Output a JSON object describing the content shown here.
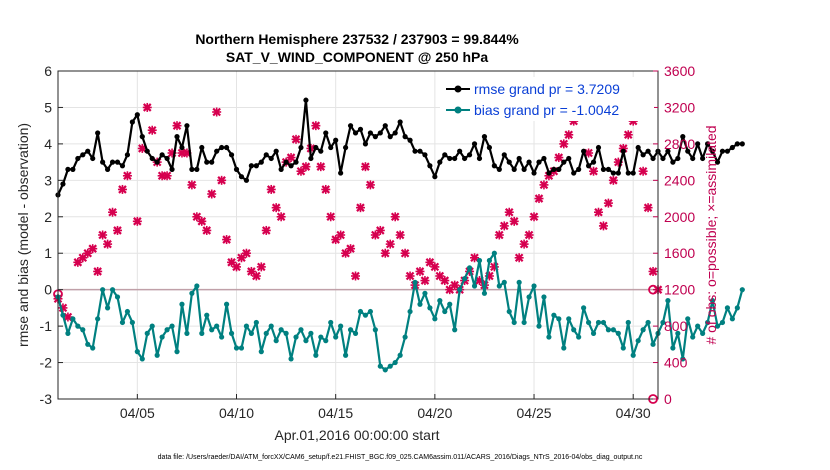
{
  "chart_data": {
    "type": "line",
    "title": "Northern Hemisphere 237532 / 237903 = 99.844%",
    "subtitle": "SAT_V_WIND_COMPONENT @ 250 hPa",
    "xlabel": "Apr.01,2016 00:00:00 start",
    "ylabel": "rmse and bias (model - observation)",
    "ylabel_right": "# of obs: o=possible; ×=assimilated",
    "footer": "data file: /Users/raeder/DAI/ATM_forcXX/CAM6_setup/f.e21.FHIST_BGC.f09_025.CAM6assim.011/ACARS_2016/Diags_NTrS_2016-04/obs_diag_output.nc",
    "x_range": [
      1.0,
      31.25
    ],
    "ylim": [
      -3,
      6
    ],
    "ylim_right": [
      0,
      3600
    ],
    "x_ticks": [
      {
        "value": 5,
        "label": "04/05"
      },
      {
        "value": 10,
        "label": "04/10"
      },
      {
        "value": 15,
        "label": "04/15"
      },
      {
        "value": 20,
        "label": "04/20"
      },
      {
        "value": 25,
        "label": "04/25"
      },
      {
        "value": 30,
        "label": "04/30"
      }
    ],
    "y_ticks": [
      "-3",
      "-2",
      "-1",
      "0",
      "1",
      "2",
      "3",
      "4",
      "5",
      "6"
    ],
    "y_ticks_right": [
      "0",
      "400",
      "800",
      "1200",
      "1600",
      "2000",
      "2400",
      "2800",
      "3200",
      "3600"
    ],
    "grid": true,
    "legend_position": "top-right",
    "colors": {
      "rmse": "#000000",
      "bias": "#008080",
      "obs": "#d6004f",
      "zero_line": "#c0a0a8"
    },
    "series": [
      {
        "name": "rmse grand pr = 3.7209",
        "axis": "left",
        "x_start": 1.0,
        "x_step": 0.25,
        "values": [
          2.6,
          2.9,
          3.3,
          3.3,
          3.6,
          3.7,
          3.8,
          3.6,
          4.3,
          3.5,
          3.3,
          3.5,
          3.5,
          3.4,
          3.7,
          4.6,
          4.8,
          4.2,
          3.8,
          3.6,
          3.5,
          3.7,
          3.6,
          3.3,
          4.2,
          3.9,
          4.5,
          3.3,
          3.3,
          3.9,
          3.5,
          3.5,
          3.8,
          3.9,
          3.9,
          3.7,
          3.3,
          3.1,
          3.0,
          3.4,
          3.4,
          3.5,
          3.7,
          3.6,
          3.8,
          3.3,
          3.5,
          3.4,
          3.5,
          3.9,
          5.2,
          3.6,
          3.9,
          3.8,
          4.3,
          3.9,
          4.1,
          3.2,
          3.9,
          4.5,
          4.3,
          4.4,
          4.0,
          4.3,
          4.2,
          4.3,
          4.5,
          4.2,
          4.3,
          4.6,
          4.2,
          4.1,
          3.8,
          3.8,
          3.7,
          3.4,
          3.1,
          3.5,
          3.7,
          3.6,
          3.6,
          3.8,
          3.6,
          3.7,
          4.0,
          3.6,
          4.2,
          3.9,
          3.4,
          3.3,
          3.7,
          3.5,
          3.3,
          3.6,
          3.3,
          3.5,
          3.2,
          3.5,
          3.6,
          3.2,
          3.3,
          3.3,
          3.5,
          3.6,
          3.2,
          3.3,
          3.8,
          3.4,
          3.5,
          3.9,
          3.3,
          3.3,
          3.2,
          3.2,
          3.8,
          3.2,
          3.2,
          3.9,
          3.7,
          3.8,
          3.6,
          3.8,
          3.6,
          3.8,
          3.5,
          3.6,
          4.2,
          3.8,
          3.6,
          4.0,
          3.6,
          4.0,
          3.8,
          3.5,
          3.8,
          3.8,
          3.9,
          4.0,
          4.0
        ]
      },
      {
        "name": "bias grand pr = -1.0042",
        "axis": "left",
        "x_start": 1.0,
        "x_step": 0.25,
        "values": [
          -0.2,
          -0.7,
          -1.2,
          -0.8,
          -1.0,
          -1.1,
          -1.5,
          -1.6,
          -0.8,
          0.0,
          -0.5,
          0.0,
          -0.2,
          -0.9,
          -0.6,
          -0.9,
          -1.7,
          -1.9,
          -1.2,
          -1.0,
          -1.8,
          -1.3,
          -1.1,
          -1.0,
          -1.7,
          -0.4,
          -1.2,
          -0.1,
          0.1,
          -1.2,
          -0.7,
          -1.1,
          -1.0,
          -1.3,
          -0.4,
          -1.2,
          -1.6,
          -1.6,
          -1.0,
          -1.2,
          -0.9,
          -1.7,
          -1.2,
          -1.0,
          -1.4,
          -1.1,
          -1.2,
          -1.9,
          -1.3,
          -1.1,
          -1.4,
          -1.2,
          -1.8,
          -1.3,
          -1.4,
          -0.9,
          -1.3,
          -1.0,
          -1.8,
          -1.1,
          -1.2,
          -0.6,
          -0.7,
          -0.6,
          -1.1,
          -2.1,
          -2.2,
          -2.1,
          -2.0,
          -1.8,
          -1.3,
          -0.6,
          0.2,
          -0.4,
          -0.1,
          -0.5,
          -0.8,
          -0.3,
          -0.6,
          -0.4,
          -1.1,
          0.0,
          0.3,
          0.6,
          0.1,
          0.8,
          -0.1,
          0.8,
          1.0,
          0.1,
          0.2,
          -0.6,
          -0.9,
          0.2,
          -0.9,
          -0.2,
          0.1,
          -1.0,
          -0.2,
          -1.3,
          -0.7,
          -0.8,
          -1.6,
          -0.8,
          -1.1,
          -1.3,
          -0.5,
          -0.9,
          -1.2,
          -0.9,
          -0.9,
          -1.1,
          -1.1,
          -1.2,
          -1.6,
          -0.9,
          -1.8,
          -1.4,
          -1.1,
          -0.9,
          -1.5,
          -1.2,
          -0.9,
          -0.3,
          -1.6,
          -1.2,
          -1.9,
          -0.8,
          -1.3,
          -1.0,
          -1.2,
          -0.9,
          -0.3,
          -1.0,
          -0.9,
          -0.5,
          -0.8,
          -0.5,
          0.0
        ]
      },
      {
        "name": "assimilated",
        "axis": "right",
        "points": [
          [
            1.0,
            1100
          ],
          [
            1.25,
            1000
          ],
          [
            1.5,
            900
          ],
          [
            2.0,
            1500
          ],
          [
            2.25,
            1550
          ],
          [
            2.5,
            1600
          ],
          [
            2.75,
            1650
          ],
          [
            3.0,
            1400
          ],
          [
            3.25,
            1800
          ],
          [
            3.5,
            1700
          ],
          [
            3.75,
            2050
          ],
          [
            4.0,
            1850
          ],
          [
            4.25,
            2300
          ],
          [
            4.5,
            2450
          ],
          [
            5.0,
            1950
          ],
          [
            5.25,
            2750
          ],
          [
            5.5,
            3200
          ],
          [
            5.75,
            2950
          ],
          [
            6.0,
            2600
          ],
          [
            6.25,
            2450
          ],
          [
            6.5,
            2450
          ],
          [
            6.75,
            2700
          ],
          [
            7.0,
            3000
          ],
          [
            7.25,
            2700
          ],
          [
            7.5,
            2700
          ],
          [
            7.75,
            2350
          ],
          [
            8.0,
            2000
          ],
          [
            8.25,
            1950
          ],
          [
            8.5,
            1850
          ],
          [
            8.75,
            2250
          ],
          [
            9.0,
            3150
          ],
          [
            9.25,
            2400
          ],
          [
            9.5,
            1750
          ],
          [
            9.75,
            1500
          ],
          [
            10.0,
            1450
          ],
          [
            10.25,
            1550
          ],
          [
            10.5,
            1600
          ],
          [
            10.75,
            1400
          ],
          [
            11.0,
            1350
          ],
          [
            11.25,
            1450
          ],
          [
            11.5,
            1850
          ],
          [
            11.75,
            2300
          ],
          [
            12.0,
            2100
          ],
          [
            12.25,
            2000
          ],
          [
            12.5,
            2600
          ],
          [
            12.75,
            2650
          ],
          [
            13.0,
            2850
          ],
          [
            13.25,
            2500
          ],
          [
            13.5,
            2550
          ],
          [
            13.75,
            2750
          ],
          [
            14.0,
            3000
          ],
          [
            14.25,
            2550
          ],
          [
            14.5,
            2300
          ],
          [
            14.75,
            2000
          ],
          [
            15.0,
            1750
          ],
          [
            15.25,
            1800
          ],
          [
            15.5,
            1600
          ],
          [
            15.75,
            1650
          ],
          [
            16.0,
            1350
          ],
          [
            16.25,
            2100
          ],
          [
            16.5,
            2550
          ],
          [
            16.75,
            2350
          ],
          [
            17.0,
            1800
          ],
          [
            17.25,
            1850
          ],
          [
            17.5,
            1600
          ],
          [
            17.75,
            1700
          ],
          [
            18.0,
            2000
          ],
          [
            18.25,
            1800
          ],
          [
            18.5,
            1600
          ],
          [
            18.75,
            1350
          ],
          [
            19.0,
            1250
          ],
          [
            19.25,
            1400
          ],
          [
            19.5,
            1300
          ],
          [
            19.75,
            1500
          ],
          [
            20.0,
            1450
          ],
          [
            20.25,
            1350
          ],
          [
            20.5,
            1300
          ],
          [
            20.75,
            1200
          ],
          [
            21.0,
            1250
          ],
          [
            21.25,
            1200
          ],
          [
            21.5,
            1300
          ],
          [
            21.75,
            1400
          ],
          [
            22.0,
            1550
          ],
          [
            22.25,
            1300
          ],
          [
            22.5,
            1250
          ],
          [
            22.75,
            1350
          ],
          [
            23.0,
            1450
          ],
          [
            23.25,
            1800
          ],
          [
            23.5,
            1900
          ],
          [
            23.75,
            2050
          ],
          [
            24.0,
            1950
          ],
          [
            24.25,
            1550
          ],
          [
            24.5,
            1700
          ],
          [
            24.75,
            1800
          ],
          [
            25.0,
            2000
          ],
          [
            25.25,
            2200
          ],
          [
            25.5,
            2350
          ],
          [
            25.75,
            2450
          ],
          [
            26.0,
            2500
          ],
          [
            26.25,
            2650
          ],
          [
            26.5,
            2800
          ],
          [
            26.75,
            2900
          ],
          [
            27.0,
            3050
          ],
          [
            27.25,
            3300
          ],
          [
            27.5,
            3150
          ],
          [
            27.75,
            2700
          ],
          [
            28.0,
            2500
          ],
          [
            28.25,
            2050
          ],
          [
            28.5,
            1900
          ],
          [
            28.75,
            2150
          ],
          [
            29.0,
            2400
          ],
          [
            29.25,
            2600
          ],
          [
            29.5,
            2750
          ],
          [
            29.75,
            2900
          ],
          [
            30.0,
            3050
          ],
          [
            30.25,
            3300
          ],
          [
            30.5,
            2500
          ],
          [
            30.75,
            2100
          ],
          [
            31.0,
            1400
          ],
          [
            31.25,
            1200
          ]
        ]
      },
      {
        "name": "possible",
        "axis": "right",
        "points": [
          [
            1.0,
            1150
          ],
          [
            31.0,
            1200
          ],
          [
            31.0,
            0
          ]
        ]
      }
    ]
  }
}
